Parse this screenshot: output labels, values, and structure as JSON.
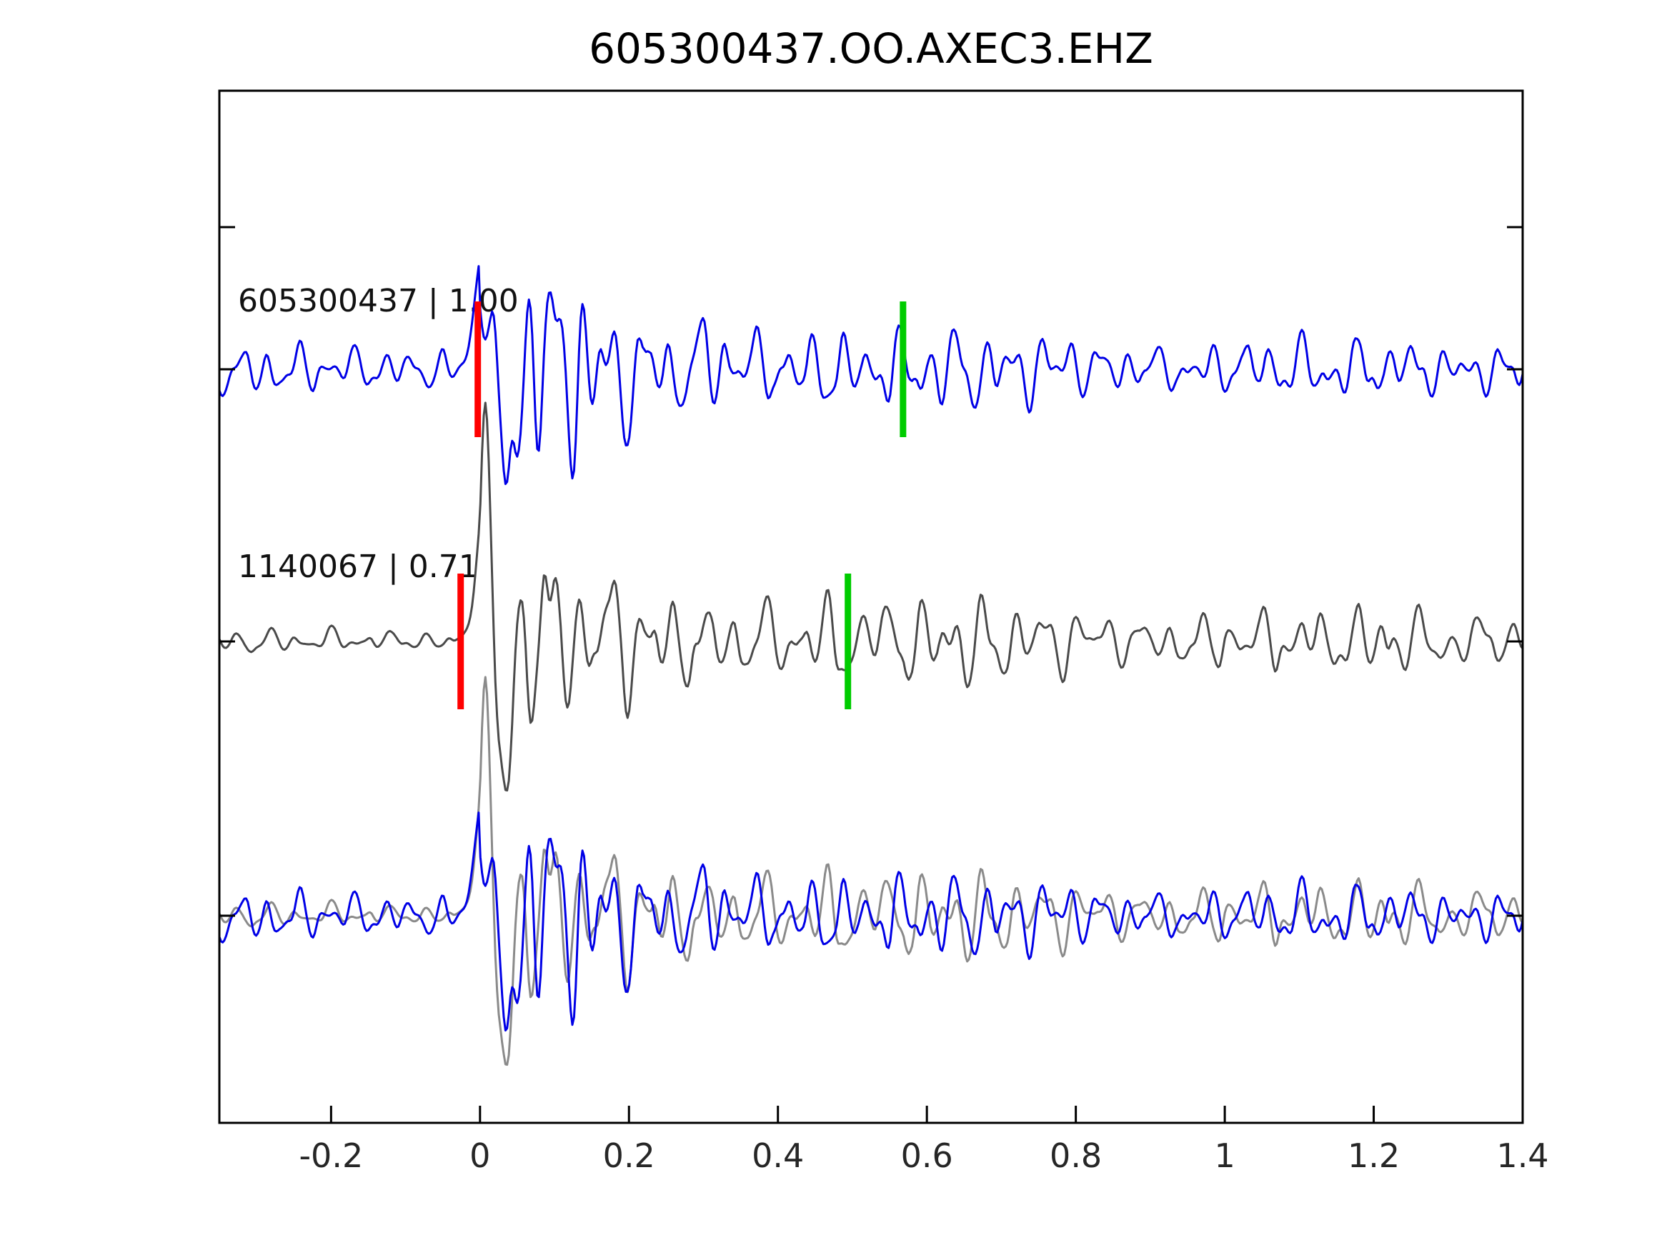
{
  "figure": {
    "title": "605300437.OO.AXEC3.EHZ",
    "background": "#ffffff",
    "axis_color": "#000000"
  },
  "chart_data": {
    "type": "line",
    "title": "605300437.OO.AXEC3.EHZ",
    "description": "Seismogram template-matching comparison: template trace (blue), detected event trace (gray), and overlay of both, with red pick markers near t=0 and green end-of-window markers",
    "xlim": [
      -0.35,
      1.4
    ],
    "x_ticks": [
      -0.2,
      0,
      0.2,
      0.4,
      0.6,
      0.8,
      1,
      1.2,
      1.4
    ],
    "x_tick_labels": [
      "-0.2",
      "0",
      "0.2",
      "0.4",
      "0.6",
      "0.8",
      "1",
      "1.2",
      "1.4"
    ],
    "grid": false,
    "legend": "none",
    "rows": [
      {
        "id": "template",
        "label": "605300437 | 1.00",
        "event_id": "605300437",
        "correlation": 1.0,
        "color": "#0000e6",
        "pick_time_red": -0.003,
        "pick_time_green": 0.568,
        "synth": {
          "seed": 42,
          "freq": 26,
          "pre_amp": 0.22,
          "spike_amp": 1.0,
          "coda_amp": 0.55,
          "coda_decay": 0.35,
          "tail_amp": 0.2
        }
      },
      {
        "id": "detection",
        "label": "1140067 | 0.71",
        "event_id": "1140067",
        "correlation": 0.71,
        "color": "#4a4a4a",
        "pick_time_red": -0.026,
        "pick_time_green": 0.494,
        "synth": {
          "seed": 7,
          "freq": 24,
          "pre_amp": 0.11,
          "spike_amp": 1.0,
          "coda_amp": 0.5,
          "coda_decay": 0.38,
          "tail_amp": 0.2
        }
      },
      {
        "id": "overlay",
        "label": "",
        "colors": [
          "#8a8a8a",
          "#0000e6"
        ]
      }
    ],
    "marker_colors": {
      "red": "#ff0000",
      "green": "#00cc00"
    }
  }
}
